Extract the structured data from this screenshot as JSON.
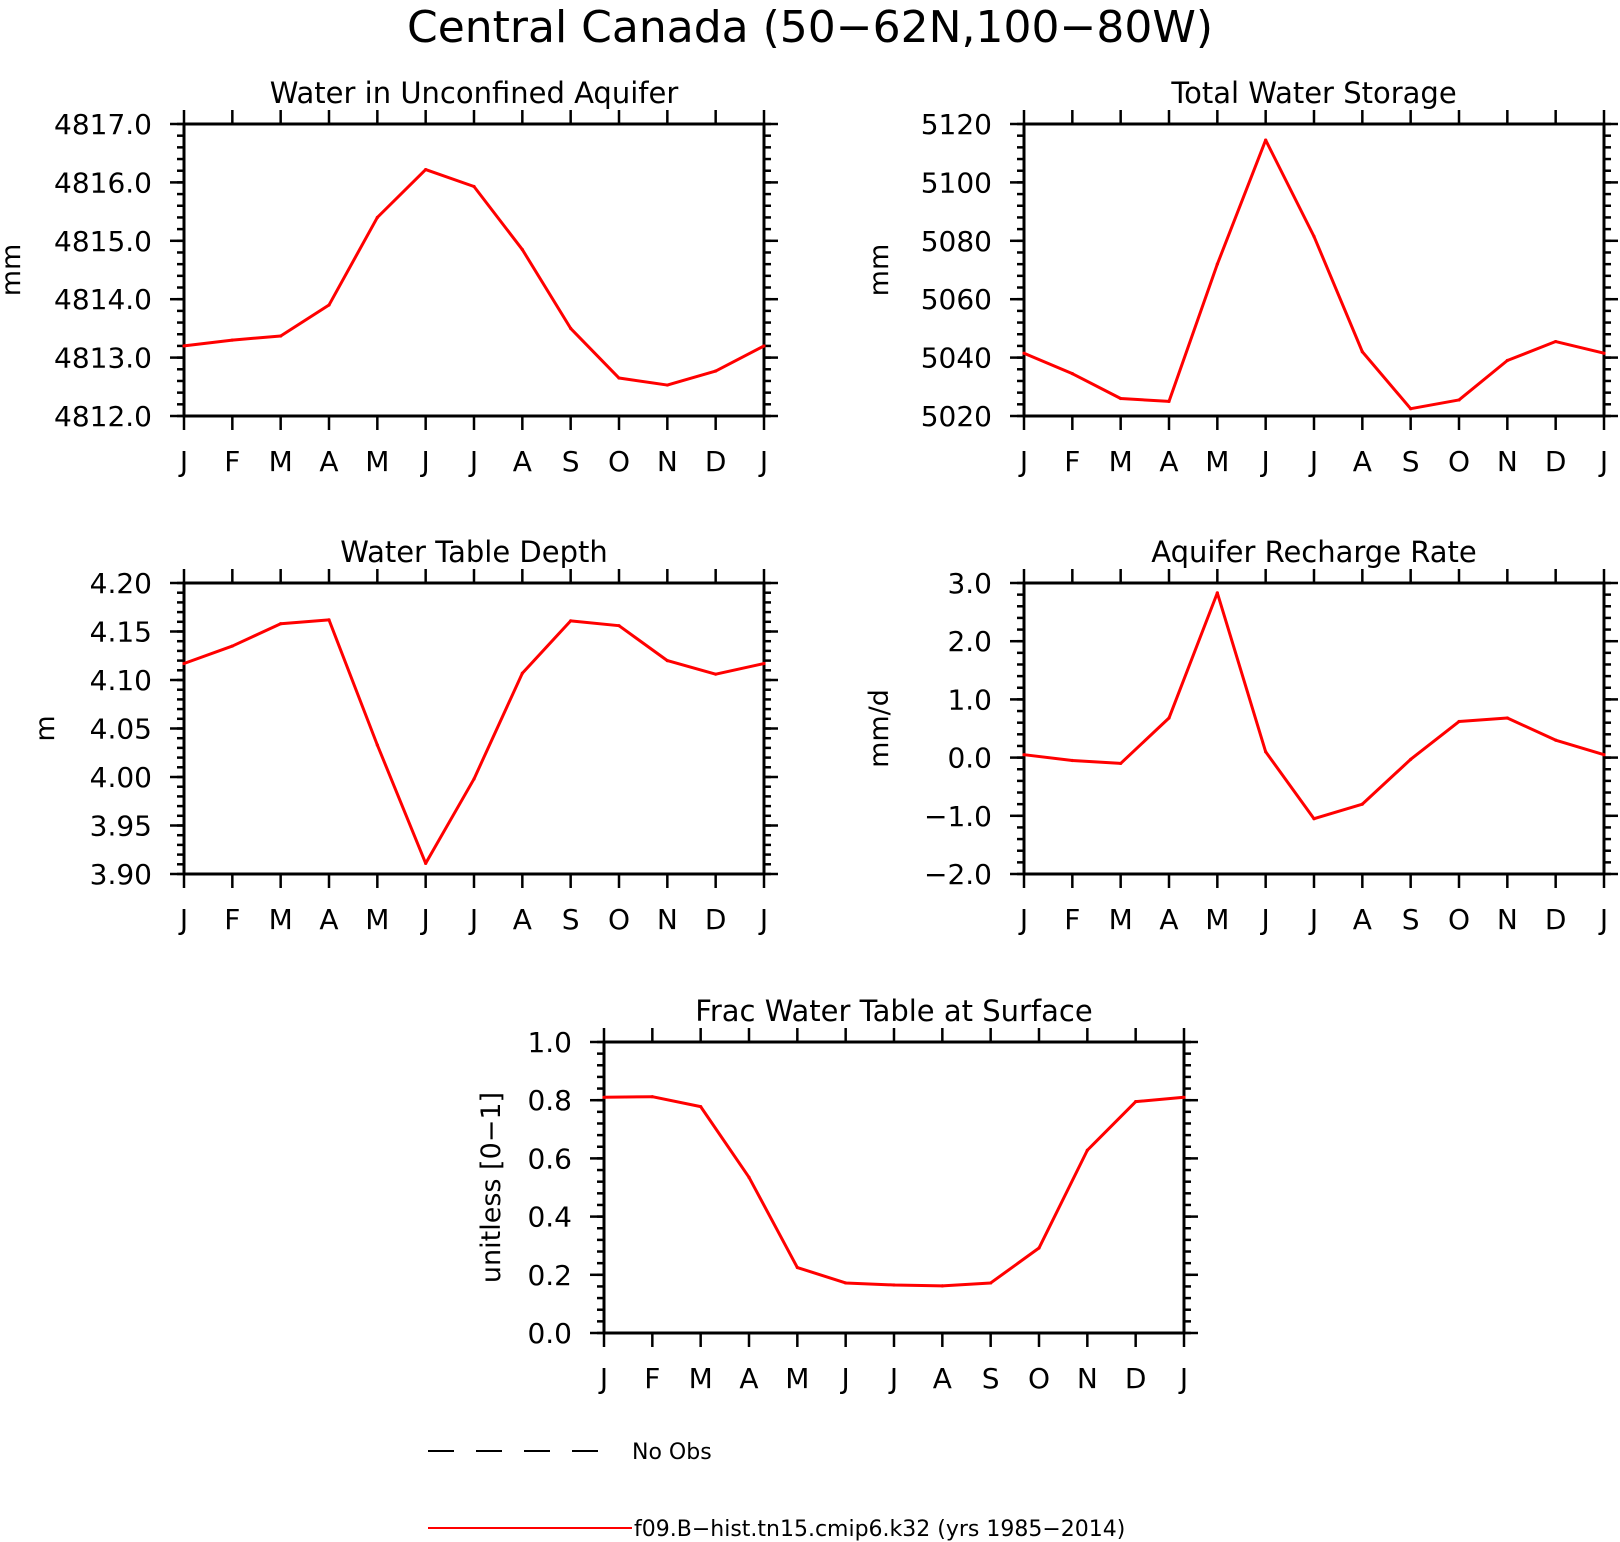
{
  "figure_title": "Central Canada (50−62N,100−80W)",
  "series_color": "#ff0000",
  "chart_data": [
    {
      "type": "line",
      "title": "Water in Unconfined Aquifer",
      "ylabel": "mm",
      "xlabel": "",
      "x": [
        "J",
        "F",
        "M",
        "A",
        "M",
        "J",
        "J",
        "A",
        "S",
        "O",
        "N",
        "D",
        "J"
      ],
      "ylim": [
        4812.0,
        4817.0
      ],
      "yticks": [
        4812.0,
        4813.0,
        4814.0,
        4815.0,
        4816.0,
        4817.0
      ],
      "ytick_labels": [
        "4812.0",
        "4813.0",
        "4814.0",
        "4815.0",
        "4816.0",
        "4817.0"
      ],
      "series": [
        {
          "values": [
            4813.2,
            4813.3,
            4813.37,
            4813.9,
            4815.4,
            4816.22,
            4815.93,
            4814.85,
            4813.5,
            4812.65,
            4812.53,
            4812.77,
            4813.2
          ]
        }
      ]
    },
    {
      "type": "line",
      "title": "Total Water Storage",
      "ylabel": "mm",
      "xlabel": "",
      "x": [
        "J",
        "F",
        "M",
        "A",
        "M",
        "J",
        "J",
        "A",
        "S",
        "O",
        "N",
        "D",
        "J"
      ],
      "ylim": [
        5020,
        5120
      ],
      "yticks": [
        5020,
        5040,
        5060,
        5080,
        5100,
        5120
      ],
      "ytick_labels": [
        "5020",
        "5040",
        "5060",
        "5080",
        "5100",
        "5120"
      ],
      "series": [
        {
          "values": [
            5041.5,
            5034.5,
            5026,
            5025,
            5072,
            5114.5,
            5081.5,
            5042,
            5022.5,
            5025.5,
            5039,
            5045.5,
            5041.5
          ]
        }
      ]
    },
    {
      "type": "line",
      "title": "Water Table Depth",
      "ylabel": "m",
      "xlabel": "",
      "x": [
        "J",
        "F",
        "M",
        "A",
        "M",
        "J",
        "J",
        "A",
        "S",
        "O",
        "N",
        "D",
        "J"
      ],
      "ylim": [
        3.9,
        4.2
      ],
      "yticks": [
        3.9,
        3.95,
        4.0,
        4.05,
        4.1,
        4.15,
        4.2
      ],
      "ytick_labels": [
        "3.90",
        "3.95",
        "4.00",
        "4.05",
        "4.10",
        "4.15",
        "4.20"
      ],
      "series": [
        {
          "values": [
            4.117,
            4.135,
            4.158,
            4.162,
            4.033,
            3.911,
            3.998,
            4.107,
            4.161,
            4.156,
            4.12,
            4.106,
            4.117
          ]
        }
      ]
    },
    {
      "type": "line",
      "title": "Aquifer Recharge Rate",
      "ylabel": "mm/d",
      "xlabel": "",
      "x": [
        "J",
        "F",
        "M",
        "A",
        "M",
        "J",
        "J",
        "A",
        "S",
        "O",
        "N",
        "D",
        "J"
      ],
      "ylim": [
        -2.0,
        3.0
      ],
      "yticks": [
        -2.0,
        -1.0,
        0.0,
        1.0,
        2.0,
        3.0
      ],
      "ytick_labels": [
        "−2.0",
        "−1.0",
        "0.0",
        "1.0",
        "2.0",
        "3.0"
      ],
      "series": [
        {
          "values": [
            0.05,
            -0.05,
            -0.1,
            0.68,
            2.83,
            0.1,
            -1.05,
            -0.8,
            -0.03,
            0.62,
            0.68,
            0.3,
            0.05
          ]
        }
      ]
    },
    {
      "type": "line",
      "title": "Frac Water Table at Surface",
      "ylabel": "unitless [0−1]",
      "xlabel": "",
      "x": [
        "J",
        "F",
        "M",
        "A",
        "M",
        "J",
        "J",
        "A",
        "S",
        "O",
        "N",
        "D",
        "J"
      ],
      "ylim": [
        0.0,
        1.0
      ],
      "yticks": [
        0.0,
        0.2,
        0.4,
        0.6,
        0.8,
        1.0
      ],
      "ytick_labels": [
        "0.0",
        "0.2",
        "0.4",
        "0.6",
        "0.8",
        "1.0"
      ],
      "series": [
        {
          "values": [
            0.81,
            0.812,
            0.778,
            0.535,
            0.225,
            0.172,
            0.165,
            0.162,
            0.172,
            0.292,
            0.628,
            0.795,
            0.81
          ]
        }
      ]
    }
  ],
  "legend": [
    {
      "label": "No Obs",
      "style": "dashed",
      "color": "#000000"
    },
    {
      "label": "f09.B−hist.tn15.cmip6.k32 (yrs 1985−2014)",
      "style": "solid",
      "color": "#ff0000"
    }
  ]
}
